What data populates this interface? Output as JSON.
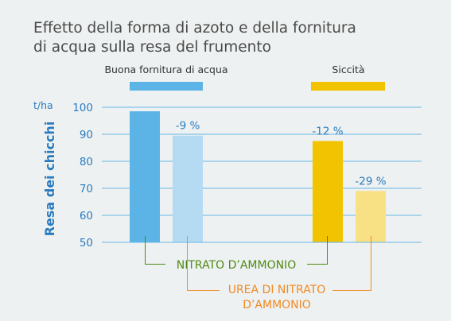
{
  "title_line1": "Effetto della forma di azoto e della fornitura",
  "title_line2": "di acqua sulla resa del frumento",
  "colors": {
    "background": "#eef1f1",
    "title": "#4a4a4a",
    "axis_text": "#2b7bbf",
    "grid": "#66b6e6",
    "nitrate_label": "#4f8a14",
    "urea_label": "#f08a24"
  },
  "chart_data": {
    "type": "bar",
    "ylabel": "Resa dei chicchi",
    "y_unit": "t/ha",
    "ylim": [
      50,
      100
    ],
    "yticks": [
      100,
      90,
      80,
      70,
      60,
      50
    ],
    "grid": true,
    "groups": [
      {
        "name": "Buona fornitura di acqua",
        "color": "#5cb4e6",
        "bars": [
          {
            "series": "NITRATO D'AMMONIO",
            "value": 98.5,
            "label": "",
            "color": "#5cb4e6"
          },
          {
            "series": "UREA DI NITRATO D'AMMONIO",
            "value": 89.5,
            "label": "-9 %",
            "color": "#b5dbf3"
          }
        ]
      },
      {
        "name": "Siccità",
        "color": "#f2c300",
        "bars": [
          {
            "series": "NITRATO D'AMMONIO",
            "value": 87.5,
            "label": "-12 %",
            "color": "#f2c300"
          },
          {
            "series": "UREA DI NITRATO D'AMMONIO",
            "value": 69.0,
            "label": "-29 %",
            "color": "#f8e084"
          }
        ]
      }
    ],
    "series_labels": {
      "nitrate": "NITRATO D’AMMONIO",
      "urea_line1": "UREA DI NITRATO",
      "urea_line2": "D’AMMONIO"
    }
  }
}
